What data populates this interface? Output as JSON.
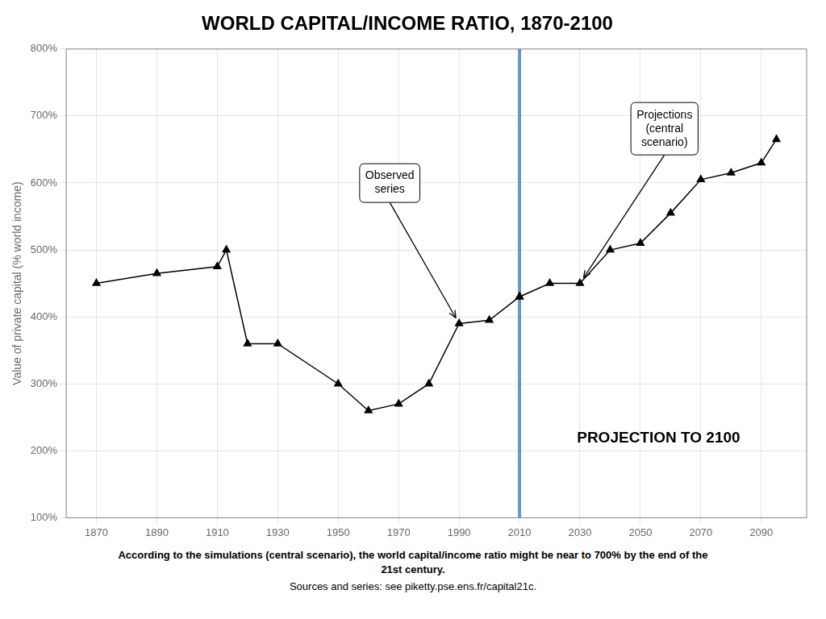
{
  "chart_data": {
    "type": "line",
    "title": "WORLD CAPITAL/INCOME RATIO, 1870-2100",
    "y_label": "Value of private capital (% world income)",
    "series": [
      {
        "x": [
          1870,
          1890,
          1910,
          1913,
          1920,
          1930,
          1950,
          1960,
          1970,
          1980,
          1990,
          2000,
          2010
        ],
        "values": [
          450,
          465,
          475,
          500,
          360,
          360,
          300,
          260,
          270,
          300,
          390,
          395,
          430
        ],
        "color": "#000000",
        "marker": "triangle"
      },
      {
        "x": [
          2010,
          2020,
          2030,
          2040,
          2050,
          2060,
          2070,
          2080,
          2090,
          2095
        ],
        "values": [
          430,
          450,
          450,
          500,
          510,
          555,
          605,
          615,
          630,
          665
        ],
        "color": "#000000",
        "marker": "triangle"
      }
    ],
    "vline": {
      "x": 2010,
      "color": "#6699bb"
    },
    "xlim": [
      1860,
      2105
    ],
    "xticks": [
      1870,
      1890,
      1910,
      1930,
      1950,
      1970,
      1990,
      2010,
      2030,
      2050,
      2070,
      2090
    ],
    "ylim": [
      100,
      800
    ],
    "yticks": [
      {
        "value": 100,
        "label": "100%"
      },
      {
        "value": 200,
        "label": "200%"
      },
      {
        "value": 300,
        "label": "300%"
      },
      {
        "value": 400,
        "label": "400%"
      },
      {
        "value": 500,
        "label": "500%"
      },
      {
        "value": 600,
        "label": "600%"
      },
      {
        "value": 700,
        "label": "700%"
      },
      {
        "value": 800,
        "label": "800%"
      }
    ],
    "grid": true,
    "annotations": [
      "Observed\nseries",
      "Projections\n(central\nscenario)",
      "PROJECTION TO 2100"
    ],
    "caption": [
      "According to the simulations (central scenario), the world capital/income ratio might be near to 700% by the end of the\n21st century.",
      " Sources and series: see piketty.pse.ens.fr/capital21c."
    ]
  }
}
